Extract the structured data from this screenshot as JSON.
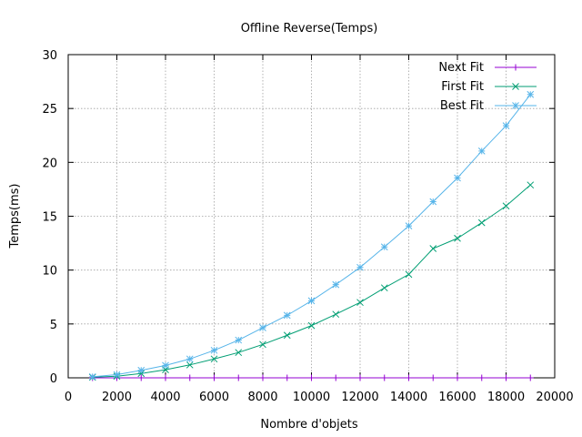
{
  "chart_data": {
    "type": "line",
    "title": "Offline Reverse(Temps)",
    "xlabel": "Nombre d'objets",
    "ylabel": "Temps(ms)",
    "xlim": [
      0,
      20000
    ],
    "ylim": [
      0,
      30
    ],
    "xticks": [
      0,
      2000,
      4000,
      6000,
      8000,
      10000,
      12000,
      14000,
      16000,
      18000,
      20000
    ],
    "yticks": [
      0,
      5,
      10,
      15,
      20,
      25,
      30
    ],
    "grid": true,
    "legend_position": "top-right",
    "x": [
      1000,
      2000,
      3000,
      4000,
      5000,
      6000,
      7000,
      8000,
      9000,
      10000,
      11000,
      12000,
      13000,
      14000,
      15000,
      16000,
      17000,
      18000,
      19000
    ],
    "series": [
      {
        "name": "Next Fit",
        "marker": "plus",
        "color": "#9400d3",
        "values": [
          0,
          0,
          0,
          0,
          0,
          0,
          0,
          0,
          0,
          0,
          0,
          0,
          0,
          0,
          0,
          0,
          0,
          0,
          0
        ]
      },
      {
        "name": "First Fit",
        "marker": "cross",
        "color": "#009e73",
        "values": [
          0.05,
          0.15,
          0.4,
          0.75,
          1.2,
          1.75,
          2.35,
          3.1,
          3.95,
          4.85,
          5.9,
          7.0,
          8.35,
          9.6,
          12.0,
          12.95,
          14.4,
          15.95,
          17.9
        ]
      },
      {
        "name": "Best Fit",
        "marker": "star",
        "color": "#56b4e9",
        "values": [
          0.1,
          0.3,
          0.7,
          1.15,
          1.75,
          2.55,
          3.5,
          4.65,
          5.8,
          7.15,
          8.65,
          10.25,
          12.15,
          14.1,
          16.35,
          18.55,
          21.05,
          23.4,
          26.3
        ]
      }
    ]
  }
}
